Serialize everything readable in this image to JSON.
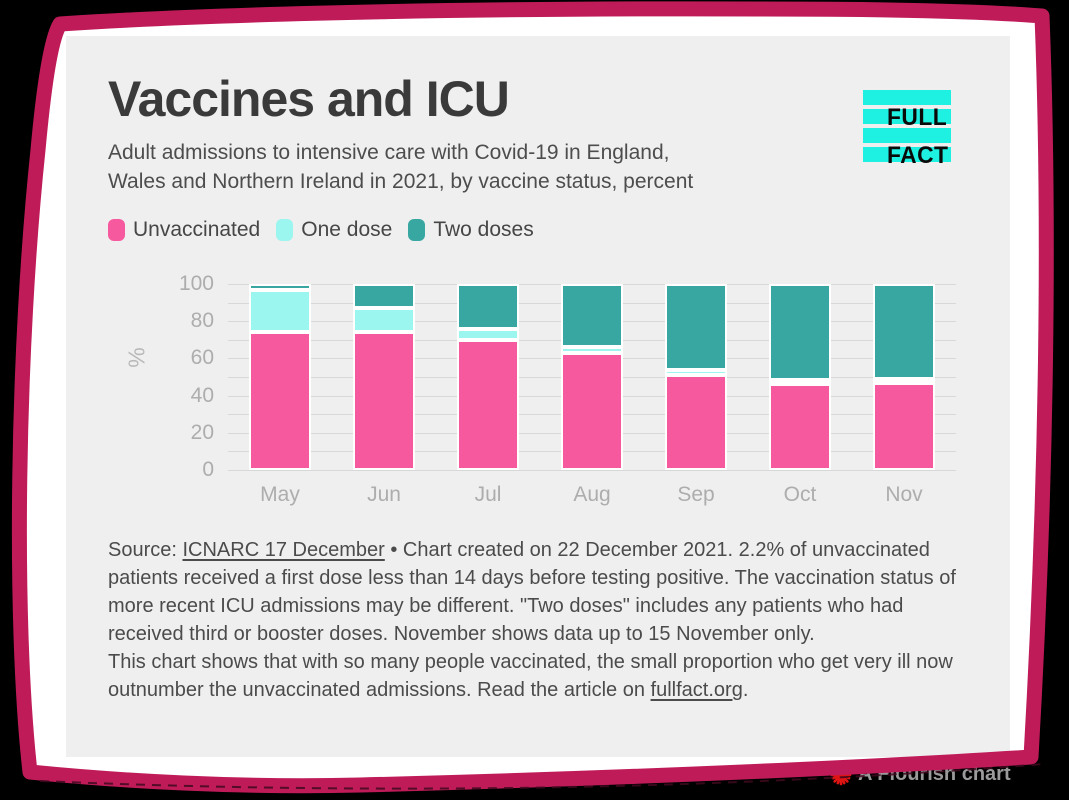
{
  "header": {
    "title": "Vaccines and ICU",
    "subtitle_line1": "Adult admissions to intensive care with Covid-19 in England,",
    "subtitle_line2": "Wales and Northern Ireland in 2021, by vaccine status, percent",
    "logo": {
      "line1": "FULL",
      "line2": "FACT",
      "bar_color": "#1ef0e2"
    }
  },
  "legend": [
    {
      "label": "Unvaccinated",
      "color": "#f7599f"
    },
    {
      "label": "One dose",
      "color": "#9af6ee"
    },
    {
      "label": "Two doses",
      "color": "#38a7a2"
    }
  ],
  "chart_data": {
    "type": "bar",
    "subtype": "stacked-percent",
    "categories": [
      "May",
      "Jun",
      "Jul",
      "Aug",
      "Sep",
      "Oct",
      "Nov"
    ],
    "series": [
      {
        "name": "Unvaccinated",
        "color": "#f7599f",
        "values": [
          74,
          74,
          70,
          63,
          51,
          46,
          47
        ]
      },
      {
        "name": "One dose",
        "color": "#9af6ee",
        "values": [
          23,
          13,
          6,
          3,
          3,
          2,
          2
        ]
      },
      {
        "name": "Two doses",
        "color": "#38a7a2",
        "values": [
          3,
          13,
          24,
          34,
          46,
          52,
          51
        ]
      }
    ],
    "title": "Vaccines and ICU",
    "xlabel": "",
    "ylabel": "%",
    "ylim": [
      0,
      100
    ],
    "yticks": [
      0,
      20,
      40,
      60,
      80,
      100
    ],
    "grid_interval": 10,
    "grid": true,
    "legend_position": "top"
  },
  "footer": {
    "source_prefix": "Source: ",
    "source_link": "ICNARC 17 December",
    "note": " • Chart created on 22 December 2021. 2.2% of unvaccinated patients received a first dose less than 14 days before testing positive. The vaccination status of more recent ICU admissions may be different. \"Two doses\" includes any patients who had received third or booster doses. November shows data up to 15 November only.",
    "cta_prefix": "This chart shows that with so many people vaccinated, the small proportion who get very ill now outnumber the unvaccinated admissions. Read the article on ",
    "cta_link": "fullfact.org",
    "cta_suffix": "."
  },
  "attribution": {
    "label": "A Flourish chart"
  },
  "colors": {
    "background": "#000000",
    "card": "#ffffff",
    "frame": "#c01b59",
    "panel": "#efefef",
    "title_text": "#3a3a3a",
    "body_text": "#4b4b4b",
    "axis_text": "#adadad",
    "gridline": "#d8d8d8",
    "logo_cyan": "#1ef0e2",
    "flourish_red": "#e11414"
  }
}
